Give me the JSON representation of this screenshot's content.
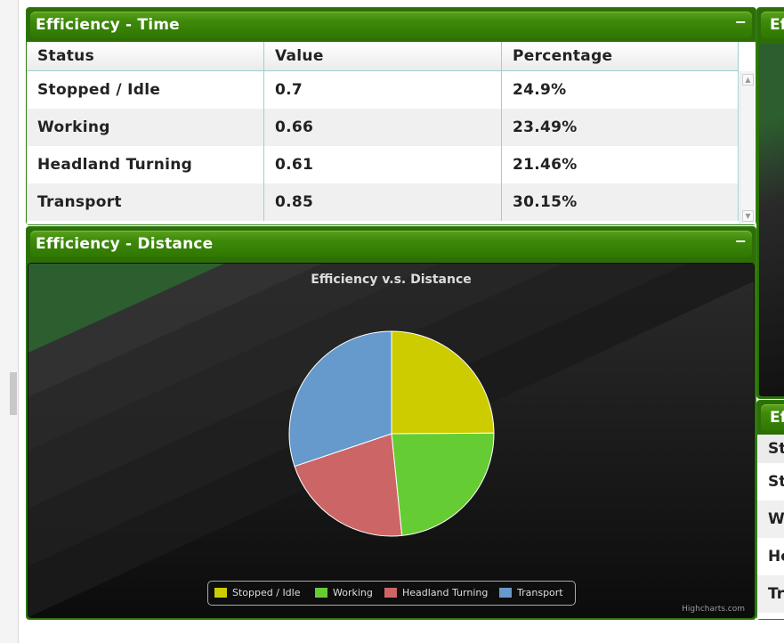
{
  "time_panel": {
    "title": "Efficiency - Time",
    "collapse_label": "−",
    "columns": [
      "Status",
      "Value",
      "Percentage"
    ],
    "rows": [
      {
        "status": "Stopped / Idle",
        "value": "0.7",
        "percentage": "24.9%"
      },
      {
        "status": "Working",
        "value": "0.66",
        "percentage": "23.49%"
      },
      {
        "status": "Headland Turning",
        "value": "0.61",
        "percentage": "21.46%"
      },
      {
        "status": "Transport",
        "value": "0.85",
        "percentage": "30.15%"
      }
    ]
  },
  "distance_panel": {
    "title": "Efficiency - Distance",
    "collapse_label": "−",
    "credits": "Highcharts.com"
  },
  "chart_data": {
    "type": "pie",
    "title": "Efficiency v.s. Distance",
    "categories": [
      "Stopped / Idle",
      "Working",
      "Headland Turning",
      "Transport"
    ],
    "values": [
      24.9,
      23.49,
      21.46,
      30.15
    ],
    "colors": [
      "#cccc00",
      "#66cc33",
      "#cc6666",
      "#6699cc"
    ],
    "legend": "bottom"
  },
  "right_top_panel": {
    "title_fragment": "Eff"
  },
  "right_bottom_panel": {
    "title_fragment": "Effi",
    "row_fragments": [
      "St",
      "St",
      "Wo",
      "He",
      "Tr"
    ]
  },
  "colors": {
    "panel_green": "#2e6e08",
    "header_green": "#3f8a0c",
    "chart_bg": "#1d1d1d"
  }
}
